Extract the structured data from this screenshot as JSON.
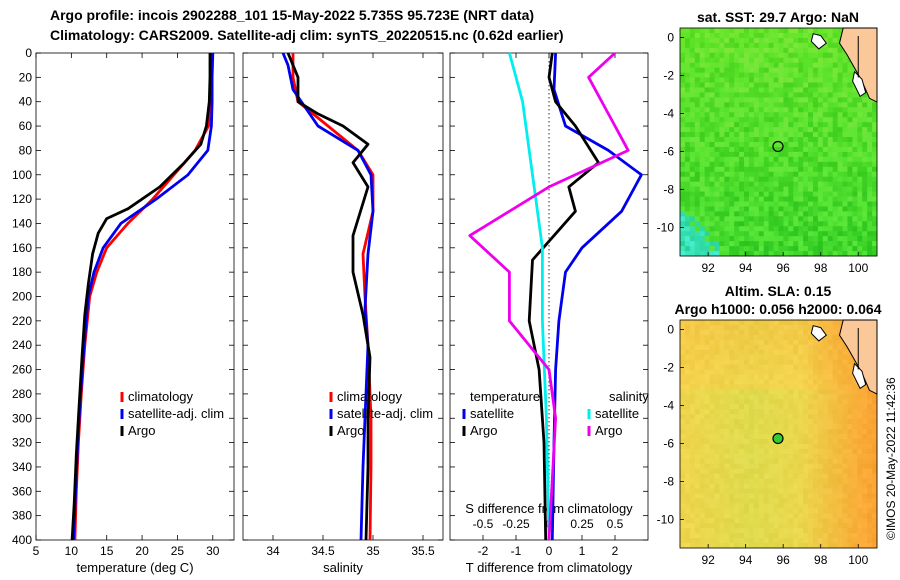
{
  "titles": {
    "line1": "Argo profile: incois 2902288_101 15-May-2022 5.735S 95.723E (NRT data)",
    "line2": "Climatology: CARS2009. Satellite-adj clim: synTS_20220515.nc (0.62d earlier)"
  },
  "colors": {
    "climatology": "#ff0000",
    "satellite": "#0000ee",
    "argo": "#000000",
    "sal_sat": "#00eeee",
    "sal_argo": "#ee00ee",
    "ocean_sst": "#3ec83e",
    "ocean_sla": "#f5c84a",
    "land": "#fbc89a"
  },
  "timestamp": "©IMOS 20-May-2022 11:42:36",
  "chart_data": [
    {
      "type": "line",
      "name": "temperature-profile",
      "xlabel": "temperature (deg C)",
      "xlim": [
        5,
        33
      ],
      "ylim": [
        0,
        400
      ],
      "xticks": [
        "5",
        "10",
        "15",
        "20",
        "25",
        "30"
      ],
      "xtick_values": [
        5,
        10,
        15,
        20,
        25,
        30
      ],
      "yticks": [
        "0",
        "20",
        "40",
        "60",
        "80",
        "100",
        "120",
        "140",
        "160",
        "180",
        "200",
        "220",
        "240",
        "260",
        "280",
        "300",
        "320",
        "340",
        "360",
        "380",
        "400"
      ],
      "ytick_values": [
        0,
        20,
        40,
        60,
        80,
        100,
        120,
        140,
        160,
        180,
        200,
        220,
        240,
        260,
        280,
        300,
        320,
        340,
        360,
        380,
        400
      ],
      "legend": [
        "climatology",
        "satellite-adj. clim",
        "Argo"
      ],
      "series": [
        {
          "name": "climatology",
          "color": "#ff0000",
          "points": [
            [
              29.8,
              0
            ],
            [
              29.8,
              20
            ],
            [
              29.7,
              40
            ],
            [
              29.4,
              60
            ],
            [
              27.5,
              80
            ],
            [
              24.5,
              100
            ],
            [
              21.5,
              120
            ],
            [
              18,
              140
            ],
            [
              15,
              160
            ],
            [
              13.6,
              180
            ],
            [
              12.6,
              200
            ],
            [
              11.9,
              240
            ],
            [
              11.4,
              280
            ],
            [
              11,
              320
            ],
            [
              10.7,
              360
            ],
            [
              10.5,
              400
            ]
          ]
        },
        {
          "name": "satellite-adj. clim",
          "color": "#0000ee",
          "points": [
            [
              30,
              0
            ],
            [
              29.9,
              20
            ],
            [
              29.9,
              40
            ],
            [
              29.8,
              60
            ],
            [
              29.3,
              80
            ],
            [
              26.5,
              100
            ],
            [
              22,
              120
            ],
            [
              17,
              140
            ],
            [
              14.5,
              160
            ],
            [
              13.2,
              180
            ],
            [
              12.4,
              200
            ],
            [
              11.8,
              240
            ],
            [
              11.3,
              280
            ],
            [
              10.9,
              320
            ],
            [
              10.6,
              360
            ],
            [
              10.3,
              400
            ]
          ]
        },
        {
          "name": "Argo",
          "color": "#000000",
          "points": [
            [
              29.6,
              0
            ],
            [
              29.6,
              20
            ],
            [
              29.5,
              40
            ],
            [
              29.1,
              60
            ],
            [
              28.3,
              75
            ],
            [
              26,
              90
            ],
            [
              22.5,
              110
            ],
            [
              18,
              128
            ],
            [
              15,
              136
            ],
            [
              13.8,
              148
            ],
            [
              13,
              165
            ],
            [
              12.4,
              190
            ],
            [
              11.9,
              215
            ],
            [
              11.5,
              250
            ],
            [
              11.1,
              290
            ],
            [
              10.7,
              330
            ],
            [
              10.4,
              370
            ],
            [
              10.1,
              400
            ]
          ]
        }
      ]
    },
    {
      "type": "line",
      "name": "salinity-profile",
      "xlabel": "salinity",
      "xlim": [
        33.7,
        35.7
      ],
      "ylim": [
        0,
        400
      ],
      "xticks": [
        "34",
        "34.5",
        "35",
        "35.5"
      ],
      "xtick_values": [
        34,
        34.5,
        35,
        35.5
      ],
      "legend": [
        "climatology",
        "satellite-adj. clim",
        "Argo"
      ],
      "series": [
        {
          "name": "climatology",
          "color": "#ff0000",
          "points": [
            [
              34.2,
              0
            ],
            [
              34.2,
              20
            ],
            [
              34.25,
              40
            ],
            [
              34.55,
              60
            ],
            [
              34.85,
              80
            ],
            [
              35.0,
              100
            ],
            [
              35.0,
              130
            ],
            [
              34.9,
              165
            ],
            [
              34.92,
              200
            ],
            [
              34.95,
              240
            ],
            [
              34.98,
              300
            ],
            [
              34.98,
              340
            ],
            [
              34.97,
              400
            ]
          ]
        },
        {
          "name": "satellite-adj. clim",
          "color": "#0000ee",
          "points": [
            [
              34.1,
              0
            ],
            [
              34.15,
              10
            ],
            [
              34.2,
              30
            ],
            [
              34.45,
              60
            ],
            [
              34.85,
              80
            ],
            [
              34.98,
              100
            ],
            [
              35.0,
              130
            ],
            [
              34.95,
              165
            ],
            [
              34.92,
              210
            ],
            [
              34.95,
              240
            ],
            [
              34.92,
              300
            ],
            [
              34.9,
              340
            ],
            [
              34.88,
              400
            ]
          ]
        },
        {
          "name": "Argo",
          "color": "#000000",
          "points": [
            [
              34.15,
              0
            ],
            [
              34.25,
              20
            ],
            [
              34.25,
              40
            ],
            [
              34.45,
              50
            ],
            [
              34.7,
              60
            ],
            [
              34.95,
              75
            ],
            [
              34.8,
              90
            ],
            [
              34.95,
              110
            ],
            [
              34.8,
              150
            ],
            [
              34.8,
              180
            ],
            [
              34.9,
              215
            ],
            [
              34.97,
              250
            ],
            [
              34.95,
              300
            ],
            [
              34.95,
              340
            ],
            [
              34.93,
              400
            ]
          ]
        }
      ]
    },
    {
      "type": "line",
      "name": "difference-profile",
      "xlabel": "T difference from climatology",
      "xlabel2": "S difference from climatology",
      "xlim": [
        -3,
        3
      ],
      "ylim": [
        0,
        400
      ],
      "xticks": [
        "-2",
        "-1",
        "0",
        "1",
        "2"
      ],
      "xtick_values": [
        -2,
        -1,
        0,
        1,
        2
      ],
      "s_xticks": [
        "-0.5",
        "-0.25",
        "0",
        "0.25",
        "0.5"
      ],
      "s_xtick_values": [
        -0.5,
        -0.25,
        0,
        0.25,
        0.5
      ],
      "legend_headers": [
        "temperature",
        "salinity"
      ],
      "legend": [
        "satellite",
        "Argo",
        "satellite",
        "Argo"
      ],
      "series": [
        {
          "name": "T satellite",
          "color": "#0000ee",
          "points": [
            [
              0.2,
              0
            ],
            [
              0.15,
              30
            ],
            [
              0.5,
              60
            ],
            [
              1.8,
              80
            ],
            [
              2.8,
              100
            ],
            [
              2.2,
              130
            ],
            [
              1,
              160
            ],
            [
              0.5,
              180
            ],
            [
              0.3,
              220
            ],
            [
              0.2,
              260
            ],
            [
              0.15,
              320
            ],
            [
              0.1,
              400
            ]
          ]
        },
        {
          "name": "T Argo",
          "color": "#000000",
          "points": [
            [
              0.1,
              0
            ],
            [
              0,
              20
            ],
            [
              0.2,
              40
            ],
            [
              0.8,
              60
            ],
            [
              1.5,
              90
            ],
            [
              0.6,
              110
            ],
            [
              0.8,
              130
            ],
            [
              -0.5,
              170
            ],
            [
              -0.6,
              220
            ],
            [
              -0.3,
              260
            ],
            [
              -0.15,
              320
            ],
            [
              -0.1,
              400
            ]
          ]
        },
        {
          "name": "S satellite",
          "color": "#00eeee",
          "points": [
            [
              -0.3,
              0
            ],
            [
              -0.25,
              20
            ],
            [
              -0.2,
              40
            ],
            [
              -0.15,
              80
            ],
            [
              -0.1,
              120
            ],
            [
              -0.05,
              160
            ],
            [
              -0.05,
              220
            ],
            [
              -0.02,
              300
            ],
            [
              0,
              400
            ]
          ]
        },
        {
          "name": "S Argo",
          "color": "#ee00ee",
          "points": [
            [
              0.5,
              0
            ],
            [
              0.3,
              20
            ],
            [
              0.5,
              60
            ],
            [
              0.6,
              80
            ],
            [
              0,
              110
            ],
            [
              -0.6,
              150
            ],
            [
              -0.3,
              180
            ],
            [
              -0.3,
              220
            ],
            [
              0,
              260
            ],
            [
              0.05,
              300
            ],
            [
              0,
              400
            ]
          ]
        }
      ]
    },
    {
      "type": "heatmap",
      "name": "sst-map",
      "title": "sat. SST: 29.7 Argo: NaN",
      "xlim": [
        90.5,
        101
      ],
      "ylim": [
        -11.5,
        0.5
      ],
      "xticks": [
        "92",
        "94",
        "96",
        "98",
        "100"
      ],
      "xtick_values": [
        92,
        94,
        96,
        98,
        100
      ],
      "yticks": [
        "0",
        "-2",
        "-4",
        "-6",
        "-8",
        "-10"
      ],
      "ytick_values": [
        0,
        -2,
        -4,
        -6,
        -8,
        -10
      ],
      "marker": {
        "lon": 95.723,
        "lat": -5.735
      }
    },
    {
      "type": "heatmap",
      "name": "sla-map",
      "title": "Altim. SLA: 0.15",
      "subtitle": "Argo h1000: 0.056 h2000: 0.064",
      "xlim": [
        90.5,
        101
      ],
      "ylim": [
        -11.5,
        0.5
      ],
      "xticks": [
        "92",
        "94",
        "96",
        "98",
        "100"
      ],
      "xtick_values": [
        92,
        94,
        96,
        98,
        100
      ],
      "yticks": [
        "0",
        "-2",
        "-4",
        "-6",
        "-8",
        "-10"
      ],
      "ytick_values": [
        0,
        -2,
        -4,
        -6,
        -8,
        -10
      ],
      "marker": {
        "lon": 95.723,
        "lat": -5.735
      }
    }
  ]
}
